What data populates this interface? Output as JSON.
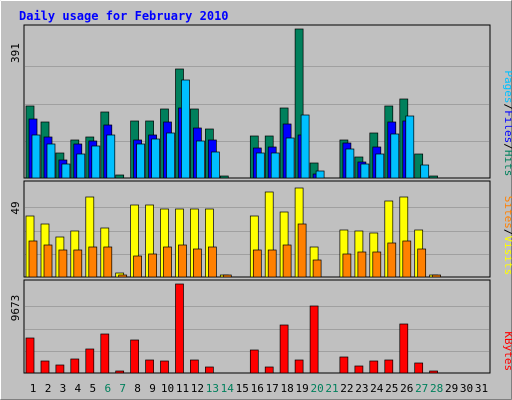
{
  "chart_data": [
    {
      "type": "bar",
      "title": "Daily usage for February 2010",
      "axis_label_parts": [
        "Pages",
        "/",
        "Files",
        "/",
        "Hits"
      ],
      "ymax_label": "391",
      "ylim": [
        0,
        391
      ],
      "series": [
        {
          "name": "Hits",
          "color": "#00805c",
          "values": [
            189,
            146,
            65,
            100,
            108,
            172,
            7,
            150,
            150,
            181,
            286,
            180,
            128,
            5,
            0,
            111,
            110,
            183,
            391,
            40,
            0,
            100,
            54,
            117,
            188,
            206,
            63,
            6
          ]
        },
        {
          "name": "Files",
          "color": "#0000ff",
          "values": [
            156,
            108,
            47,
            89,
            97,
            139,
            0,
            100,
            113,
            146,
            183,
            131,
            99,
            0,
            0,
            78,
            81,
            142,
            113,
            10,
            0,
            91,
            41,
            82,
            146,
            150,
            0,
            0
          ]
        },
        {
          "name": "Pages",
          "color": "#00c0ff",
          "values": [
            113,
            88,
            36,
            63,
            83,
            114,
            0,
            89,
            103,
            117,
            258,
            97,
            67,
            0,
            0,
            66,
            65,
            105,
            166,
            18,
            0,
            77,
            37,
            64,
            115,
            163,
            34,
            0
          ]
        }
      ]
    },
    {
      "type": "bar",
      "axis_label_parts": [
        "Sites",
        "/",
        "Visits"
      ],
      "ymax_label": "49",
      "ylim": [
        0,
        49
      ],
      "series": [
        {
          "name": "Visits",
          "color": "#ffff00",
          "values": [
            32,
            28,
            21,
            24,
            42,
            26,
            2,
            38,
            38,
            36,
            36,
            36,
            36,
            1,
            0,
            32,
            45,
            34,
            47,
            16,
            0,
            25,
            24,
            23,
            40,
            42,
            25,
            1
          ]
        },
        {
          "name": "Sites",
          "color": "#ff8000",
          "values": [
            19,
            17,
            14,
            14,
            16,
            16,
            1,
            11,
            12,
            16,
            17,
            15,
            16,
            1,
            0,
            14,
            14,
            17,
            28,
            9,
            0,
            12,
            13,
            13,
            18,
            19,
            15,
            1
          ]
        }
      ]
    },
    {
      "type": "bar",
      "axis_label_parts": [
        "KBytes"
      ],
      "ymax_label": "9673",
      "ylim": [
        0,
        9673
      ],
      "series": [
        {
          "name": "KBytes",
          "color": "#ff0000",
          "values": [
            3750,
            1300,
            900,
            1500,
            2600,
            4200,
            200,
            3600,
            1400,
            1300,
            9673,
            1400,
            700,
            0,
            0,
            2500,
            700,
            5200,
            1400,
            7300,
            0,
            1700,
            800,
            1300,
            1400,
            5300,
            1100,
            200
          ]
        }
      ]
    },
    {
      "type": "bar",
      "x_labels": [
        "1",
        "2",
        "3",
        "4",
        "5",
        "6",
        "7",
        "8",
        "9",
        "10",
        "11",
        "12",
        "13",
        "14",
        "15",
        "16",
        "17",
        "18",
        "19",
        "20",
        "21",
        "22",
        "23",
        "24",
        "25",
        "26",
        "27",
        "28",
        "29",
        "30",
        "31"
      ],
      "weekend_days": [
        6,
        7,
        13,
        14,
        20,
        21,
        27,
        28
      ]
    }
  ],
  "colors": {
    "background": "#c0c0c0",
    "title": "#0000ff",
    "weekend_label": "#00805c",
    "weekday_label": "#000000",
    "gridline": "#a0a0a0"
  }
}
